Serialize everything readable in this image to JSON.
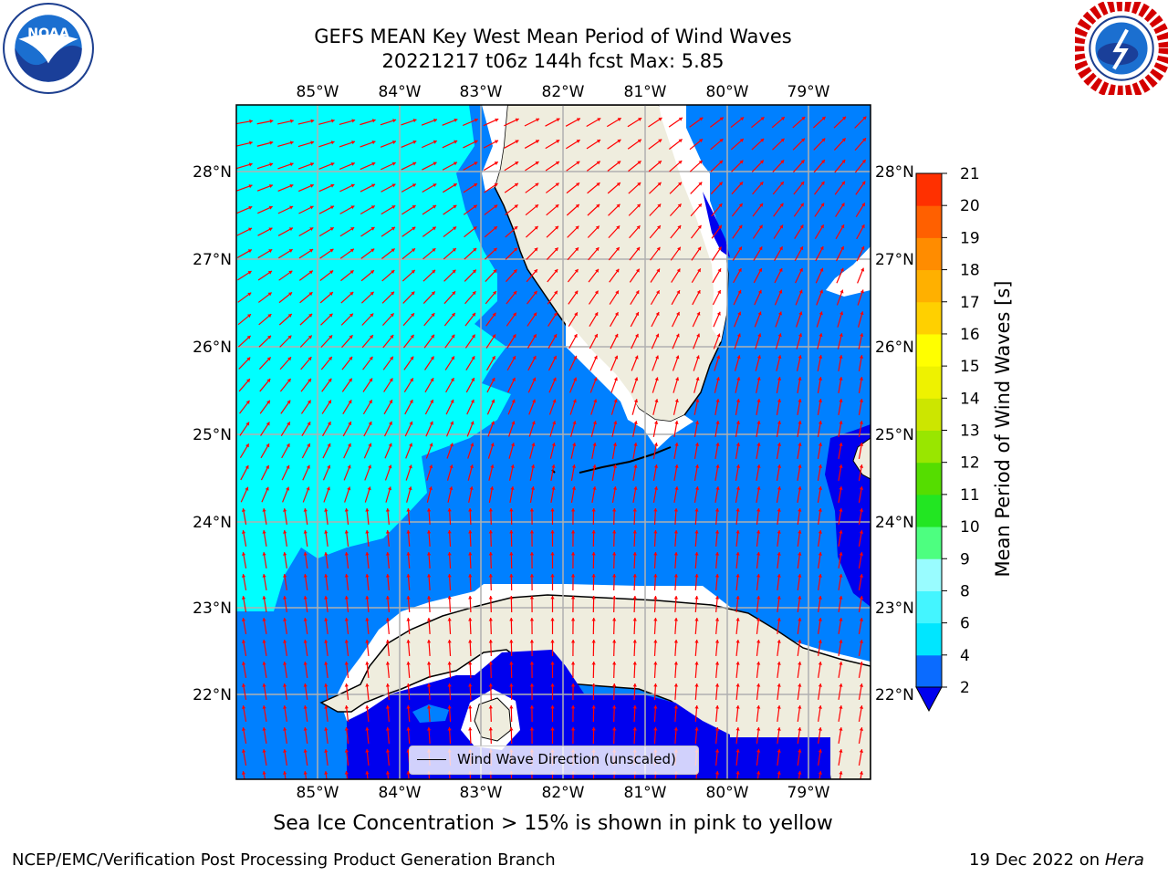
{
  "title_line1": "GEFS MEAN Key West Mean Period of Wind Waves",
  "title_line2": "20221217 t06z 144h fcst   Max: 5.85",
  "lon_labels": [
    "85°W",
    "84°W",
    "83°W",
    "82°W",
    "81°W",
    "80°W",
    "79°W"
  ],
  "lat_labels": [
    "28°N",
    "27°N",
    "26°N",
    "25°N",
    "24°N",
    "23°N",
    "22°N"
  ],
  "colorbar": {
    "label": "Mean Period of Wind Waves [s]",
    "ticks": [
      "2",
      "4",
      "6",
      "8",
      "9",
      "10",
      "11",
      "12",
      "13",
      "14",
      "15",
      "16",
      "17",
      "18",
      "19",
      "20",
      "21"
    ],
    "colors": [
      "#0a6bff",
      "#00e6ff",
      "#44f5ff",
      "#99fcff",
      "#4dff80",
      "#22e622",
      "#55dd00",
      "#99e600",
      "#cce600",
      "#eef200",
      "#ffff00",
      "#ffd000",
      "#ffb000",
      "#ff8c00",
      "#ff6000",
      "#ff3000",
      "#ff0000"
    ]
  },
  "legend_text": "Wind Wave Direction (unscaled)",
  "sea_ice_note": "Sea Ice Concentration > 15% is shown in pink to yellow",
  "footer_left": "NCEP/EMC/Verification Post Processing Product Generation Branch",
  "footer_right_date": "19 Dec 2022 on ",
  "footer_right_host": "Hera",
  "logos": {
    "left": "NOAA",
    "right": "NATIONAL WEATHER SERVICE"
  },
  "colors": {
    "land": "#efedde",
    "sea_light": "#00ffff",
    "sea_mid": "#0080ff",
    "sea_dark": "#0000ee",
    "arrow": "#ff0000"
  }
}
